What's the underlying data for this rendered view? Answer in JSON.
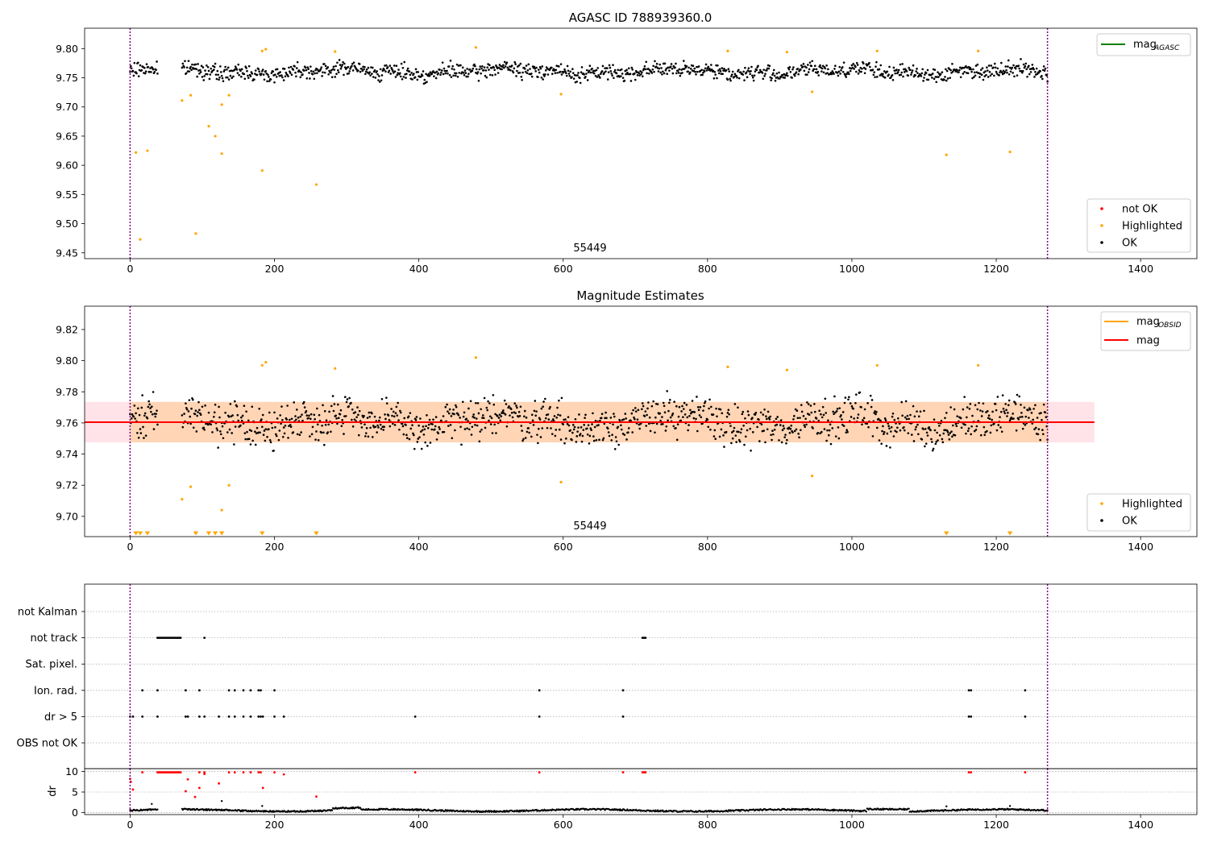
{
  "chart_data": [
    {
      "id": "agasc",
      "type": "scatter",
      "title": "AGASC ID 788939360.0",
      "annotation": "55449",
      "xlim": [
        -63,
        1478
      ],
      "ylim": [
        9.44,
        9.835
      ],
      "xticks": [
        0,
        200,
        400,
        600,
        800,
        1000,
        1200,
        1400
      ],
      "yticks": [
        9.45,
        9.5,
        9.55,
        9.6,
        9.65,
        9.7,
        9.75,
        9.8
      ],
      "ytick_labels": [
        "9.45",
        "9.50",
        "9.55",
        "9.60",
        "9.65",
        "9.70",
        "9.75",
        "9.80"
      ],
      "vlines": [
        0,
        1271
      ],
      "legend_lines": {
        "placement": "top-right",
        "entries": [
          {
            "label": "mag",
            "sub": "AGASC",
            "color": "#008000"
          }
        ]
      },
      "legend_points": {
        "placement": "bottom-right",
        "entries": [
          {
            "label": "not OK",
            "color": "#ff0000"
          },
          {
            "label": "Highlighted",
            "color": "#ffa500"
          },
          {
            "label": "OK",
            "color": "#000000"
          }
        ]
      },
      "ok_band": {
        "x_start": 0,
        "x_end": 1271,
        "center": 9.761,
        "spread": 0.014,
        "gap": [
          38,
          72
        ]
      },
      "highlighted": [
        [
          8,
          9.622
        ],
        [
          14,
          9.473
        ],
        [
          24,
          9.625
        ],
        [
          72,
          9.711
        ],
        [
          84,
          9.72
        ],
        [
          91,
          9.483
        ],
        [
          109,
          9.667
        ],
        [
          118,
          9.65
        ],
        [
          127,
          9.704
        ],
        [
          127,
          9.62
        ],
        [
          137,
          9.72
        ],
        [
          183,
          9.591
        ],
        [
          183,
          9.796
        ],
        [
          188,
          9.799
        ],
        [
          258,
          9.567
        ],
        [
          284,
          9.795
        ],
        [
          479,
          9.802
        ],
        [
          597,
          9.722
        ],
        [
          828,
          9.796
        ],
        [
          910,
          9.794
        ],
        [
          945,
          9.726
        ],
        [
          1035,
          9.796
        ],
        [
          1131,
          9.618
        ],
        [
          1175,
          9.796
        ],
        [
          1219,
          9.623
        ]
      ]
    },
    {
      "id": "estimates",
      "type": "scatter",
      "title": "Magnitude Estimates",
      "annotation": "55449",
      "xlim": [
        -63,
        1478
      ],
      "ylim": [
        9.687,
        9.835
      ],
      "xticks": [
        0,
        200,
        400,
        600,
        800,
        1000,
        1200,
        1400
      ],
      "yticks": [
        9.7,
        9.72,
        9.74,
        9.76,
        9.78,
        9.8,
        9.82
      ],
      "ytick_labels": [
        "9.70",
        "9.72",
        "9.74",
        "9.76",
        "9.78",
        "9.80",
        "9.82"
      ],
      "vlines": [
        0,
        1271
      ],
      "mag": 9.7605,
      "mag_band": [
        9.7475,
        9.7735
      ],
      "mag_xrange": [
        -63,
        1336
      ],
      "obsid_band": {
        "x_start": 0,
        "x_end": 1271,
        "range": [
          9.7475,
          9.7735
        ]
      },
      "legend_lines": {
        "placement": "top-right",
        "entries": [
          {
            "label": "mag",
            "sub": "OBSID",
            "color": "#ffa500"
          },
          {
            "label": "mag",
            "sub": "",
            "color": "#ff0000"
          }
        ]
      },
      "legend_points": {
        "placement": "bottom-right",
        "entries": [
          {
            "label": "Highlighted",
            "color": "#ffa500"
          },
          {
            "label": "OK",
            "color": "#000000"
          }
        ]
      },
      "ok_band": {
        "x_start": 0,
        "x_end": 1271,
        "center": 9.761,
        "spread": 0.014,
        "gap": [
          38,
          72
        ]
      },
      "highlighted": [
        [
          72,
          9.711
        ],
        [
          84,
          9.719
        ],
        [
          127,
          9.704
        ],
        [
          137,
          9.72
        ],
        [
          183,
          9.797
        ],
        [
          188,
          9.799
        ],
        [
          284,
          9.795
        ],
        [
          479,
          9.802
        ],
        [
          597,
          9.722
        ],
        [
          828,
          9.796
        ],
        [
          910,
          9.794
        ],
        [
          945,
          9.726
        ],
        [
          1035,
          9.797
        ],
        [
          1175,
          9.797
        ]
      ],
      "below_axis_markers": [
        8,
        14,
        24,
        91,
        109,
        118,
        127,
        183,
        258,
        1131,
        1219
      ]
    },
    {
      "id": "flags",
      "type": "scatter",
      "title": "",
      "xlim": [
        -63,
        1478
      ],
      "vlines": [
        0,
        1271
      ],
      "categories": [
        "not Kalman",
        "not track",
        "Sat. pixel.",
        "Ion. rad.",
        "dr > 5",
        "OBS not OK"
      ],
      "flag_points": {
        "not track": [
          38,
          40,
          42,
          44,
          46,
          48,
          50,
          52,
          54,
          56,
          58,
          60,
          62,
          64,
          66,
          68,
          70,
          103,
          710,
          712,
          714
        ],
        "Ion. rad.": [
          17,
          38,
          77,
          96,
          137,
          145,
          157,
          167,
          178,
          181,
          200,
          567,
          683,
          1162,
          1165,
          1240
        ],
        "dr > 5": [
          0,
          4,
          17,
          38,
          77,
          80,
          96,
          103,
          123,
          137,
          145,
          157,
          167,
          178,
          181,
          184,
          200,
          213,
          395,
          567,
          683,
          1162,
          1165,
          1240
        ]
      }
    },
    {
      "id": "dr",
      "type": "scatter",
      "ylabel": "dr",
      "xlim": [
        -63,
        1478
      ],
      "ylim": [
        -0.5,
        10.7
      ],
      "yticks": [
        0,
        5,
        10
      ],
      "xticks": [
        0,
        200,
        400,
        600,
        800,
        1000,
        1200,
        1400
      ],
      "vlines": [
        0,
        1271
      ],
      "red_points": [
        [
          0,
          8.2
        ],
        [
          1,
          7.5
        ],
        [
          4,
          5.6
        ],
        [
          17,
          9.8
        ],
        [
          38,
          9.8
        ],
        [
          40,
          9.8
        ],
        [
          42,
          9.8
        ],
        [
          44,
          9.8
        ],
        [
          46,
          9.8
        ],
        [
          48,
          9.8
        ],
        [
          50,
          9.8
        ],
        [
          52,
          9.8
        ],
        [
          54,
          9.8
        ],
        [
          56,
          9.8
        ],
        [
          58,
          9.8
        ],
        [
          60,
          9.8
        ],
        [
          62,
          9.8
        ],
        [
          64,
          9.8
        ],
        [
          66,
          9.8
        ],
        [
          68,
          9.8
        ],
        [
          70,
          9.8
        ],
        [
          77,
          5.2
        ],
        [
          80,
          8.1
        ],
        [
          90,
          3.8
        ],
        [
          96,
          6.0
        ],
        [
          96,
          9.8
        ],
        [
          103,
          9.4
        ],
        [
          103,
          9.8
        ],
        [
          123,
          7.1
        ],
        [
          137,
          9.8
        ],
        [
          145,
          9.8
        ],
        [
          157,
          9.8
        ],
        [
          167,
          9.8
        ],
        [
          178,
          9.8
        ],
        [
          181,
          9.8
        ],
        [
          184,
          6.0
        ],
        [
          200,
          9.8
        ],
        [
          213,
          9.3
        ],
        [
          258,
          3.9
        ],
        [
          395,
          9.8
        ],
        [
          567,
          9.8
        ],
        [
          683,
          9.8
        ],
        [
          710,
          9.8
        ],
        [
          712,
          9.8
        ],
        [
          714,
          9.8
        ],
        [
          1162,
          9.8
        ],
        [
          1165,
          9.8
        ],
        [
          1240,
          9.8
        ]
      ],
      "black_points": [
        [
          30,
          2.1
        ],
        [
          127,
          2.8
        ],
        [
          183,
          1.6
        ],
        [
          1131,
          1.5
        ],
        [
          1219,
          1.6
        ]
      ]
    }
  ]
}
